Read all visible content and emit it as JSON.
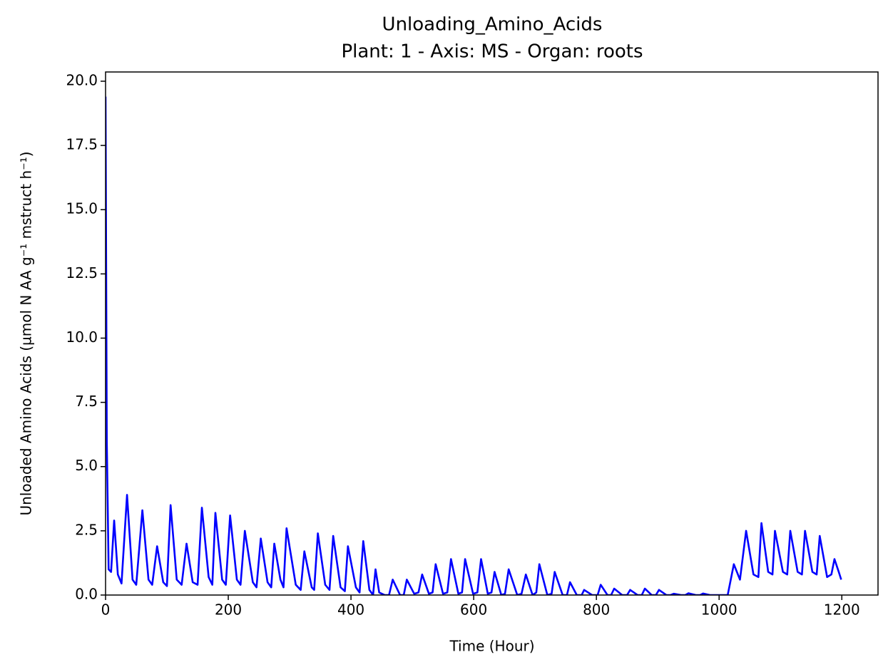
{
  "chart_data": {
    "type": "line",
    "title": "Unloading_Amino_Acids",
    "subtitle": "Plant: 1 - Axis: MS - Organ: roots",
    "x_label": "Time (Hour)",
    "y_label": "Unloaded Amino Acids (µmol N AA g⁻¹ mstruct h⁻¹)",
    "xlim": [
      0,
      1259
    ],
    "xticks": [
      0,
      200,
      400,
      600,
      800,
      1000,
      1200
    ],
    "ylim": [
      0,
      20.36
    ],
    "yticks": [
      {
        "value": 0,
        "label": "0.0"
      },
      {
        "value": 2.5,
        "label": "2.5"
      },
      {
        "value": 5,
        "label": "5.0"
      },
      {
        "value": 7.5,
        "label": "7.5"
      },
      {
        "value": 10,
        "label": "10.0"
      },
      {
        "value": 12.5,
        "label": "12.5"
      },
      {
        "value": 15,
        "label": "15.0"
      },
      {
        "value": 17.5,
        "label": "17.5"
      },
      {
        "value": 20,
        "label": "20.0"
      }
    ],
    "x": [
      0,
      2,
      5,
      9,
      14,
      20,
      26,
      35,
      44,
      50,
      60,
      70,
      76,
      84,
      94,
      100,
      106,
      116,
      124,
      132,
      142,
      150,
      157,
      168,
      174,
      179,
      190,
      196,
      203,
      214,
      220,
      227,
      240,
      246,
      253,
      264,
      270,
      275,
      285,
      290,
      295,
      310,
      318,
      324,
      336,
      340,
      346,
      358,
      365,
      371,
      383,
      390,
      395,
      408,
      414,
      420,
      430,
      436,
      440,
      446,
      455,
      462,
      468,
      480,
      486,
      491,
      503,
      510,
      516,
      527,
      533,
      538,
      550,
      557,
      563,
      575,
      581,
      586,
      599,
      606,
      612,
      623,
      629,
      634,
      645,
      651,
      657,
      671,
      678,
      685,
      696,
      702,
      707,
      720,
      727,
      732,
      745,
      752,
      757,
      768,
      776,
      780,
      793,
      802,
      807,
      818,
      824,
      829,
      842,
      850,
      855,
      867,
      874,
      879,
      890,
      897,
      902,
      914,
      921,
      926,
      938,
      945,
      950,
      962,
      969,
      974,
      985,
      1000,
      1014,
      1024,
      1034,
      1044,
      1056,
      1064,
      1069,
      1080,
      1087,
      1091,
      1104,
      1111,
      1116,
      1128,
      1135,
      1140,
      1152,
      1159,
      1164,
      1176,
      1183,
      1188,
      1195,
      1199
    ],
    "series": [
      {
        "name": "Unloading_Amino_Acids",
        "color": "#0000ff",
        "values": [
          19.4,
          6,
          1.0,
          0.9,
          2.9,
          0.8,
          0.45,
          3.9,
          0.6,
          0.4,
          3.3,
          0.6,
          0.4,
          1.9,
          0.5,
          0.35,
          3.5,
          0.6,
          0.4,
          2.0,
          0.5,
          0.4,
          3.4,
          0.7,
          0.4,
          3.2,
          0.6,
          0.4,
          3.1,
          0.6,
          0.4,
          2.5,
          0.5,
          0.3,
          2.2,
          0.5,
          0.3,
          2.0,
          0.6,
          0.3,
          2.6,
          0.4,
          0.2,
          1.7,
          0.3,
          0.2,
          2.4,
          0.4,
          0.2,
          2.3,
          0.3,
          0.15,
          1.9,
          0.3,
          0.1,
          2.1,
          0.2,
          0,
          1.0,
          0.1,
          0,
          0,
          0.6,
          0,
          0,
          0.6,
          0.05,
          0.1,
          0.8,
          0.05,
          0.1,
          1.2,
          0.05,
          0.1,
          1.4,
          0.05,
          0.1,
          1.4,
          0.05,
          0.1,
          1.4,
          0.05,
          0.1,
          0.9,
          0,
          0.05,
          1.0,
          0,
          0.05,
          0.8,
          0,
          0.1,
          1.2,
          0,
          0.05,
          0.9,
          0,
          0,
          0.5,
          0,
          0,
          0.2,
          0,
          0,
          0.4,
          0,
          0,
          0.25,
          0,
          0,
          0.2,
          0,
          0,
          0.25,
          0,
          0,
          0.2,
          0,
          0,
          0.05,
          0,
          0,
          0.07,
          0,
          0,
          0.06,
          0,
          0,
          0,
          1.2,
          0.6,
          2.5,
          0.8,
          0.7,
          2.8,
          0.9,
          0.8,
          2.5,
          0.9,
          0.8,
          2.5,
          0.9,
          0.8,
          2.5,
          0.9,
          0.8,
          2.3,
          0.7,
          0.8,
          1.4,
          0.9,
          0.6
        ]
      }
    ]
  }
}
